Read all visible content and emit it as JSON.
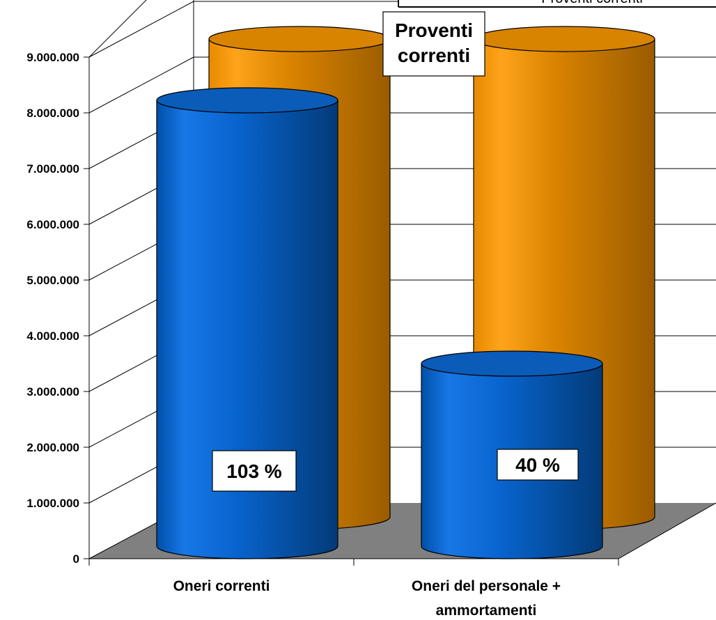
{
  "chart_data": {
    "type": "bar",
    "style": "3d-cylinder",
    "categories": [
      "Oneri correnti",
      "Oneri del personale + ammortamenti"
    ],
    "category_lines": [
      [
        "Oneri correnti"
      ],
      [
        "Oneri del personale +",
        "ammortamenti"
      ]
    ],
    "series": [
      {
        "values": [
          8600000,
          3400000
        ],
        "color": "#0066cc"
      },
      {
        "name": "Proventi correnti",
        "values": [
          8400000,
          8400000
        ],
        "color": "#ff9900"
      }
    ],
    "data_labels": [
      "103 %",
      "40 %"
    ],
    "annotation": [
      "Proventi",
      "correnti"
    ],
    "legend_text": "Proventi correnti",
    "y_ticks": [
      "0",
      "1.000.000",
      "2.000.000",
      "3.000.000",
      "4.000.000",
      "5.000.000",
      "6.000.000",
      "7.000.000",
      "8.000.000",
      "9.000.000"
    ],
    "ylim": [
      0,
      9000000
    ],
    "grid": true,
    "floor_color": "#808080"
  }
}
